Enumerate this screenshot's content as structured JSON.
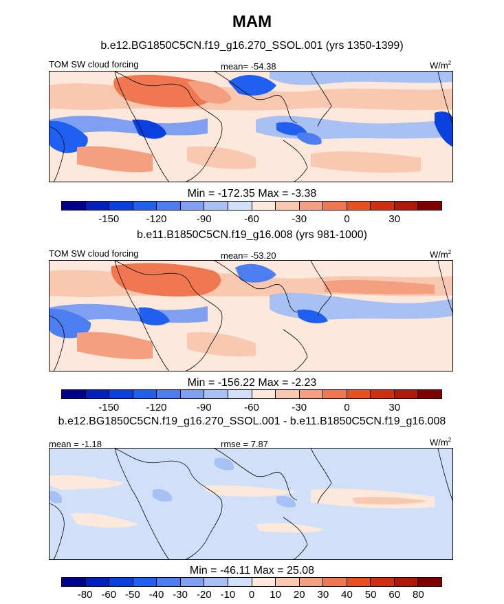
{
  "title": "MAM",
  "panels": [
    {
      "id": "p1",
      "subtitle": "b.e12.BG1850C5CN.f19_g16.270_SSOL.001 (yrs 1350-1399)",
      "left_label": "TOM SW cloud forcing",
      "center_label": "mean= -54.38",
      "units": "W/m",
      "units_sup": "2",
      "minmax": "Min = -172.35 Max =  -3.38"
    },
    {
      "id": "p2",
      "subtitle": "b.e11.B1850C5CN.f19_g16.008 (yrs 981-1000)",
      "left_label": "TOM SW cloud forcing",
      "center_label": "mean= -53.20",
      "units": "W/m",
      "units_sup": "2",
      "minmax": "Min = -156.22 Max =  -2.23"
    },
    {
      "id": "p3",
      "subtitle": "b.e12.BG1850C5CN.f19_g16.270_SSOL.001 - b.e11.B1850C5CN.f19_g16.008",
      "left_label": "mean =  -1.18",
      "center_label": "rmse =   7.87",
      "units": "W/m",
      "units_sup": "2",
      "minmax": "Min = -46.11 Max =  25.08"
    }
  ],
  "colorbar_abs": {
    "colors": [
      "#00008c",
      "#0020c0",
      "#0a40e0",
      "#2060f0",
      "#4c7ef0",
      "#7fa0f0",
      "#a8c0f4",
      "#d0e0f8",
      "#fde8dc",
      "#f8c8b0",
      "#f4a080",
      "#f07850",
      "#e85020",
      "#d03010",
      "#b01808",
      "#800000"
    ],
    "tick_labels": [
      "-150",
      "-120",
      "-90",
      "-60",
      "-30",
      "0",
      "30"
    ]
  },
  "colorbar_diff": {
    "colors": [
      "#00008c",
      "#0020c0",
      "#0a40e0",
      "#2060f0",
      "#4c7ef0",
      "#7fa0f0",
      "#a8c0f4",
      "#d0e0f8",
      "#fde8dc",
      "#f8c8b0",
      "#f4a080",
      "#f07850",
      "#e85020",
      "#d03010",
      "#b01808",
      "#800000"
    ],
    "tick_labels": [
      "-80",
      "-60",
      "-50",
      "-40",
      "-30",
      "-20",
      "-10",
      "0",
      "10",
      "20",
      "30",
      "40",
      "50",
      "60",
      "80"
    ]
  }
}
